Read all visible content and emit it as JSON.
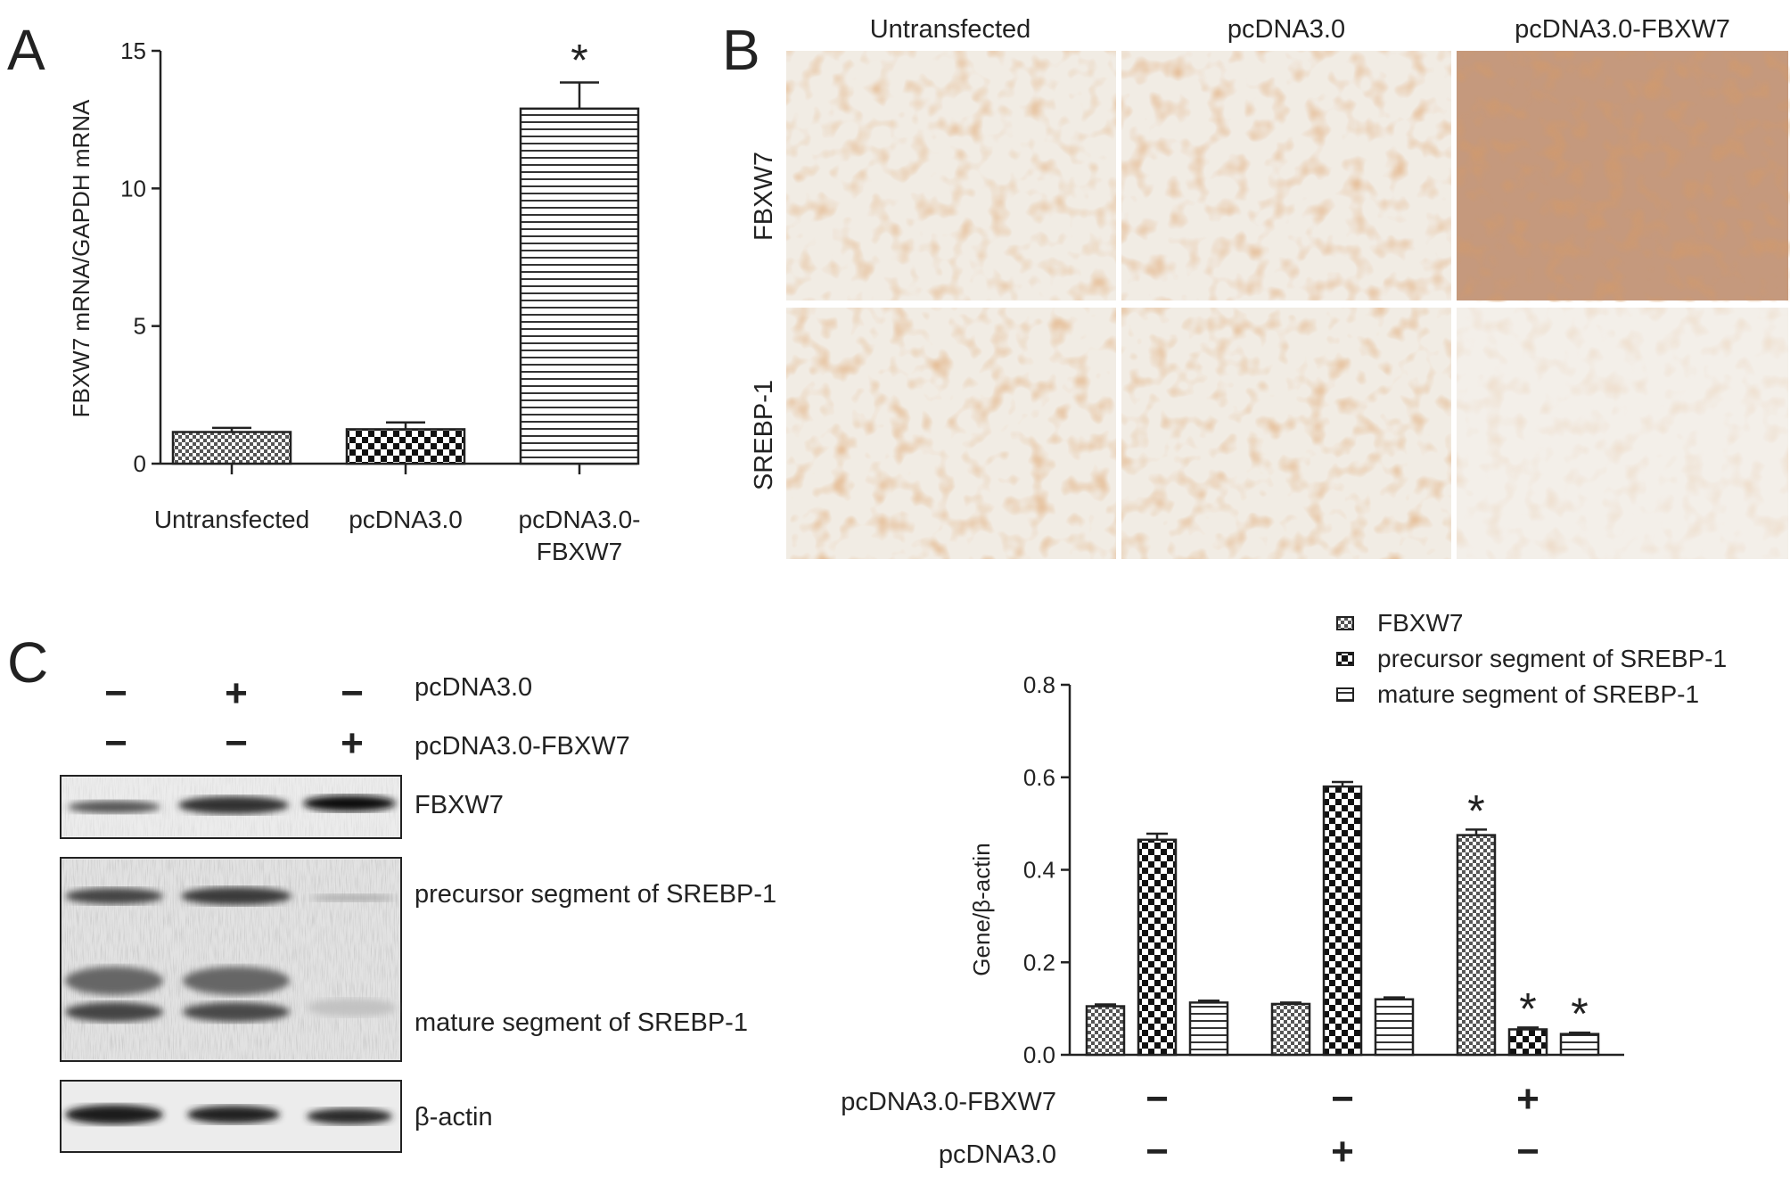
{
  "panel_letters": {
    "a": "A",
    "b": "B",
    "c": "C"
  },
  "panel_a": {
    "categories": [
      "Untransfected",
      "pcDNA3.0",
      "pcDNA3.0-\nFBXW7"
    ],
    "category_lines": [
      [
        "Untransfected"
      ],
      [
        "pcDNA3.0"
      ],
      [
        "pcDNA3.0-",
        "FBXW7"
      ]
    ],
    "ylabel": "FBXW7 mRNA/GAPDH mRNA",
    "significance": "*"
  },
  "panel_b": {
    "columns": [
      "Untransfected",
      "pcDNA3.0",
      "pcDNA3.0-FBXW7"
    ],
    "rows": [
      "FBXW7",
      "SREBP-1"
    ]
  },
  "panel_c_blot": {
    "conditions": [
      {
        "label": "pcDNA3.0",
        "signs": [
          "−",
          "+",
          "−"
        ]
      },
      {
        "label": "pcDNA3.0-FBXW7",
        "signs": [
          "−",
          "−",
          "+"
        ]
      }
    ],
    "bands": [
      "FBXW7",
      "precursor segment of SREBP-1",
      "mature segment of SREBP-1",
      "β-actin"
    ]
  },
  "panel_c_chart": {
    "ylabel": "Gene/β-actin",
    "conditions": [
      {
        "label": "pcDNA3.0-FBXW7",
        "signs": [
          "−",
          "−",
          "+"
        ]
      },
      {
        "label": "pcDNA3.0",
        "signs": [
          "−",
          "+",
          "−"
        ]
      }
    ],
    "significance": "*"
  },
  "chart_data": [
    {
      "type": "bar",
      "categories": [
        "Untransfected",
        "pcDNA3.0",
        "pcDNA3.0-FBXW7"
      ],
      "values": [
        1.15,
        1.25,
        12.9
      ],
      "errors": [
        0.15,
        0.25,
        0.95
      ],
      "ylabel": "FBXW7 mRNA/GAPDH mRNA",
      "ylim": [
        0,
        15
      ],
      "yticks": [
        0,
        5,
        10,
        15
      ],
      "significant": [
        false,
        false,
        true
      ],
      "patterns": [
        "fine-check",
        "checker",
        "hlines"
      ]
    },
    {
      "type": "bar",
      "groups": [
        "1",
        "2",
        "3"
      ],
      "series": [
        {
          "name": "FBXW7",
          "values": [
            0.105,
            0.11,
            0.475
          ],
          "errors": [
            0.004,
            0.003,
            0.012
          ],
          "significant": [
            false,
            false,
            true
          ],
          "pattern": "fine-check"
        },
        {
          "name": "precursor segment of SREBP-1",
          "values": [
            0.465,
            0.58,
            0.055
          ],
          "errors": [
            0.013,
            0.01,
            0.004
          ],
          "significant": [
            false,
            false,
            true
          ],
          "pattern": "checker"
        },
        {
          "name": "mature segment of SREBP-1",
          "values": [
            0.113,
            0.12,
            0.045
          ],
          "errors": [
            0.004,
            0.004,
            0.003
          ],
          "significant": [
            false,
            false,
            true
          ],
          "pattern": "hlines"
        }
      ],
      "ylabel": "Gene/β-actin",
      "ylim": [
        0,
        0.8
      ],
      "yticks": [
        0.0,
        0.2,
        0.4,
        0.6,
        0.8
      ],
      "legend_position": "top-right"
    }
  ],
  "colors": {
    "ink": "#222222",
    "stain_dark": "#9b4a1c",
    "stain_mid": "#c47a45",
    "stain_light": "#d9a57c",
    "stain_pale": "#e2c2a6",
    "background_ihc": "#f1ece4"
  }
}
